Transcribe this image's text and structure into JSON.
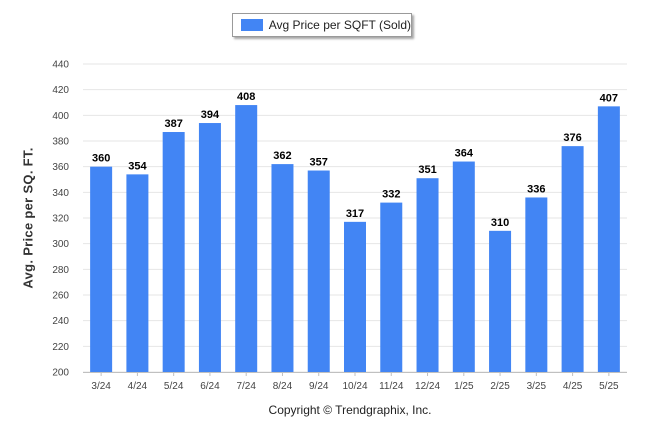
{
  "legend": {
    "label": "Avg Price per SQFT (Sold)",
    "color": "#4285f4"
  },
  "ylabel": "Avg. Price per SQ. FT.",
  "copyright": "Copyright © Trendgraphix, Inc.",
  "chart_data": {
    "type": "bar",
    "title": "",
    "xlabel": "",
    "ylabel": "Avg. Price per SQ. FT.",
    "categories": [
      "3/24",
      "4/24",
      "5/24",
      "6/24",
      "7/24",
      "8/24",
      "9/24",
      "10/24",
      "11/24",
      "12/24",
      "1/25",
      "2/25",
      "3/25",
      "4/25",
      "5/25"
    ],
    "series": [
      {
        "name": "Avg Price per SQFT (Sold)",
        "values": [
          360,
          354,
          387,
          394,
          408,
          362,
          357,
          317,
          332,
          351,
          364,
          310,
          336,
          376,
          407
        ]
      }
    ],
    "ylim": [
      200,
      440
    ],
    "yticks": [
      200,
      220,
      240,
      260,
      280,
      300,
      320,
      340,
      360,
      380,
      400,
      420,
      440
    ],
    "grid": true,
    "legend_position": "top-center",
    "bar_color": "#4285f4"
  }
}
